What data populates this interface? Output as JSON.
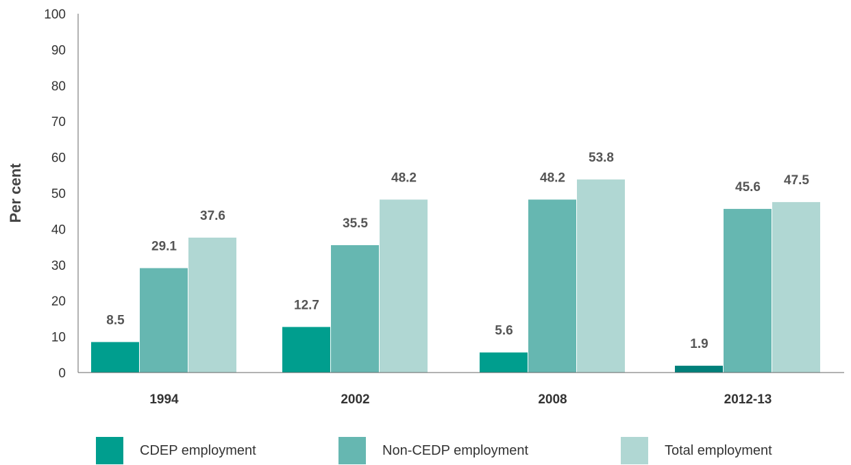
{
  "chart_data": {
    "type": "bar",
    "categories": [
      "1994",
      "2002",
      "2008",
      "2012-13"
    ],
    "series": [
      {
        "name": "CDEP employment",
        "values": [
          8.5,
          12.7,
          5.6,
          1.9
        ],
        "colors": [
          "#009E8E",
          "#009E8E",
          "#009E8E",
          "#00807A"
        ]
      },
      {
        "name": "Non-CEDP employment",
        "values": [
          29.1,
          35.5,
          48.2,
          45.6
        ],
        "color": "#66B7B1"
      },
      {
        "name": "Total employment",
        "values": [
          37.6,
          48.2,
          53.8,
          47.5
        ],
        "color": "#B0D7D3"
      }
    ],
    "data_labels": [
      [
        "8.5",
        "12.7",
        "5.6",
        "1.9"
      ],
      [
        "29.1",
        "35.5",
        "48.2",
        "45.6"
      ],
      [
        "37.6",
        "48.2",
        "53.8",
        "47.5"
      ]
    ],
    "ylabel": "Per cent",
    "ylim": [
      0,
      100
    ],
    "yticks": [
      0,
      10,
      20,
      30,
      40,
      50,
      60,
      70,
      80,
      90,
      100
    ],
    "grid": false,
    "legend_position": "bottom"
  }
}
